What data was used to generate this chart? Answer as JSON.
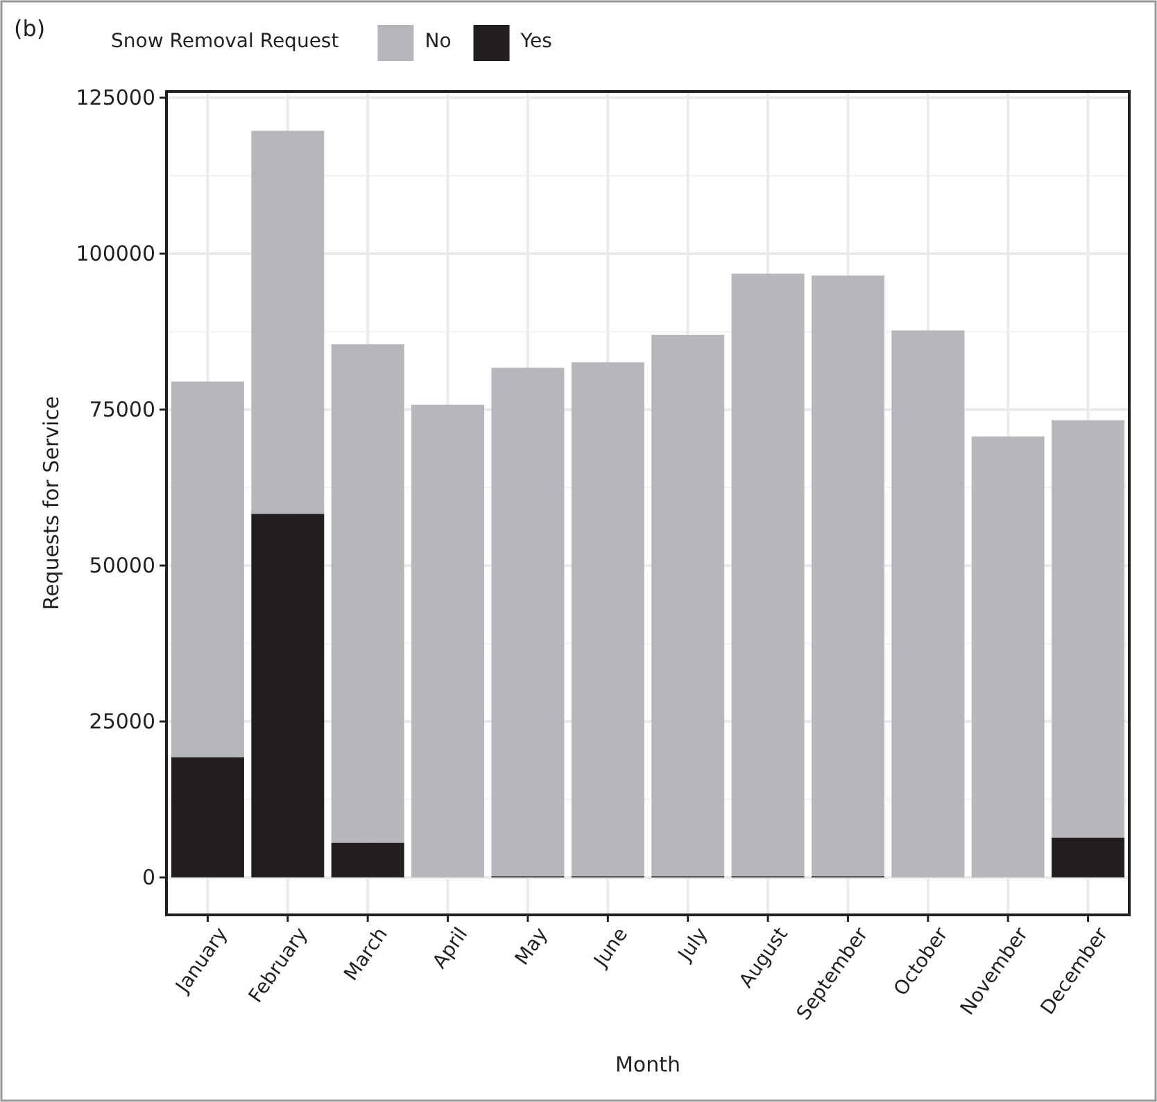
{
  "chart_data": {
    "type": "bar",
    "stacked": true,
    "xlabel": "Month",
    "ylabel": "Requests for Service",
    "legend_title": "Snow Removal Request",
    "annotations": [
      "(b)"
    ],
    "categories": [
      "January",
      "February",
      "March",
      "April",
      "May",
      "June",
      "July",
      "August",
      "September",
      "October",
      "November",
      "December"
    ],
    "series": [
      {
        "name": "Yes",
        "color": "#231f20",
        "values": [
          19300,
          58300,
          5600,
          0,
          200,
          200,
          200,
          200,
          200,
          0,
          0,
          6400
        ]
      },
      {
        "name": "No",
        "color": "#b6b7bb",
        "values": [
          60200,
          61400,
          79900,
          75800,
          81500,
          82400,
          86800,
          96600,
          96300,
          87700,
          70700,
          66900
        ]
      }
    ],
    "ylim": [
      -6000,
      126000
    ],
    "yticks": [
      0,
      25000,
      50000,
      75000,
      100000,
      125000
    ],
    "grid": true,
    "legend": "top"
  }
}
